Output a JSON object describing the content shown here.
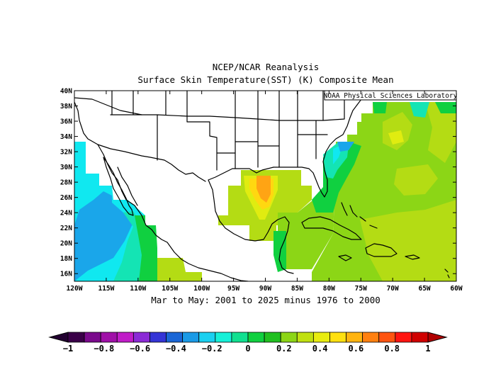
{
  "title_line1": "NCEP/NCAR Reanalysis",
  "title_line2": "Surface Skin Temperature(SST) (K) Composite Mean",
  "credit": "NOAA Physical Sciences Laboratory",
  "subtitle": "Mar to May: 2001 to 2025 minus 1976 to 2000",
  "lat_labels": [
    "40N",
    "38N",
    "36N",
    "34N",
    "32N",
    "30N",
    "28N",
    "26N",
    "24N",
    "22N",
    "20N",
    "18N",
    "16N"
  ],
  "lon_labels": [
    "120W",
    "115W",
    "110W",
    "105W",
    "100W",
    "95W",
    "90W",
    "85W",
    "80W",
    "75W",
    "70W",
    "65W",
    "60W"
  ],
  "map": {
    "lon_range": [
      -120,
      -60
    ],
    "lat_range": [
      15,
      40
    ]
  },
  "colorbar": {
    "tick_labels": [
      "−1",
      "−0.8",
      "−0.6",
      "−0.4",
      "−0.2",
      "0",
      "0.2",
      "0.4",
      "0.6",
      "0.8",
      "1"
    ],
    "colors": [
      "#3a0048",
      "#7a0a8c",
      "#a010a8",
      "#c01cc8",
      "#8b2ad6",
      "#3434d6",
      "#1a66d6",
      "#1a9ae6",
      "#1ad0f0",
      "#16f0d8",
      "#10e090",
      "#10d040",
      "#20c020",
      "#8cd616",
      "#c0e010",
      "#e8ec10",
      "#ffe010",
      "#ffb410",
      "#ff8010",
      "#ff5410",
      "#ff1410",
      "#d00000"
    ],
    "min_color": "#220030",
    "max_color": "#b00000"
  },
  "palette": {
    "cyan": "#10e8f0",
    "lightblue": "#1aa6ea",
    "teal": "#14e4b4",
    "green": "#10d040",
    "ltgreen": "#8cd616",
    "yg": "#b4dc14",
    "yellow": "#e0ec10",
    "gold": "#ffd810",
    "orange": "#ffa414"
  }
}
